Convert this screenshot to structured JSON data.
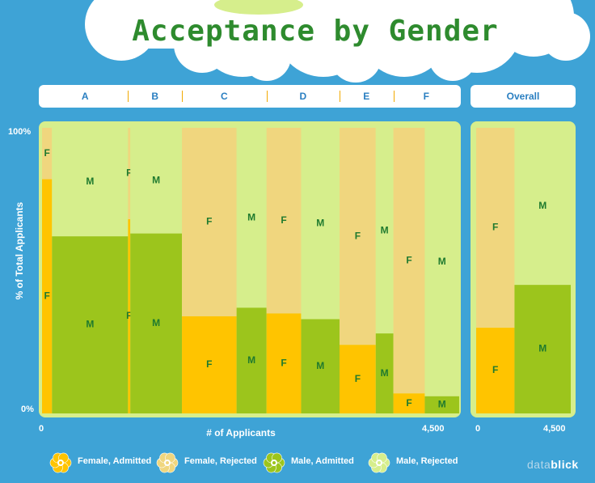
{
  "title": "Acceptance by Gender",
  "colors": {
    "background": "#3ea3d6",
    "female_admitted": "#ffc400",
    "female_rejected": "#f0d67e",
    "male_admitted": "#9cc51c",
    "male_rejected": "#d6ee8c",
    "title": "#2e8b2e",
    "segment_label": "#1f7a2e"
  },
  "chart_data": {
    "type": "marimekko",
    "title": "Acceptance by Gender",
    "xlabel": "# of Applicants",
    "ylabel": "% of Total Applicants",
    "x_ticks": [
      "0",
      "4,500"
    ],
    "y_ticks": [
      "0%",
      "100%"
    ],
    "xlim": [
      0,
      4500
    ],
    "ylim": [
      0,
      100
    ],
    "legend": {
      "placement": "bottom",
      "entries": [
        "Female, Admitted",
        "Female, Rejected",
        "Male, Admitted",
        "Male, Rejected"
      ]
    },
    "groups": [
      {
        "name": "A",
        "columns": [
          {
            "gender": "F",
            "applicants": 108,
            "admitted_pct": 82
          },
          {
            "gender": "M",
            "applicants": 825,
            "admitted_pct": 62
          }
        ]
      },
      {
        "name": "B",
        "columns": [
          {
            "gender": "F",
            "applicants": 25,
            "admitted_pct": 68
          },
          {
            "gender": "M",
            "applicants": 560,
            "admitted_pct": 63
          }
        ]
      },
      {
        "name": "C",
        "columns": [
          {
            "gender": "F",
            "applicants": 593,
            "admitted_pct": 34
          },
          {
            "gender": "M",
            "applicants": 325,
            "admitted_pct": 37
          }
        ]
      },
      {
        "name": "D",
        "columns": [
          {
            "gender": "F",
            "applicants": 375,
            "admitted_pct": 35
          },
          {
            "gender": "M",
            "applicants": 417,
            "admitted_pct": 33
          }
        ]
      },
      {
        "name": "E",
        "columns": [
          {
            "gender": "F",
            "applicants": 393,
            "admitted_pct": 24
          },
          {
            "gender": "M",
            "applicants": 191,
            "admitted_pct": 28
          }
        ]
      },
      {
        "name": "F",
        "columns": [
          {
            "gender": "F",
            "applicants": 341,
            "admitted_pct": 7
          },
          {
            "gender": "M",
            "applicants": 373,
            "admitted_pct": 6
          }
        ]
      }
    ],
    "overall": {
      "name": "Overall",
      "x_ticks": [
        "0",
        "4,500"
      ],
      "columns": [
        {
          "gender": "F",
          "applicants": 1835,
          "admitted_pct": 30
        },
        {
          "gender": "M",
          "applicants": 2691,
          "admitted_pct": 45
        }
      ]
    }
  },
  "brand": {
    "prefix": "data",
    "suffix": "blick"
  }
}
